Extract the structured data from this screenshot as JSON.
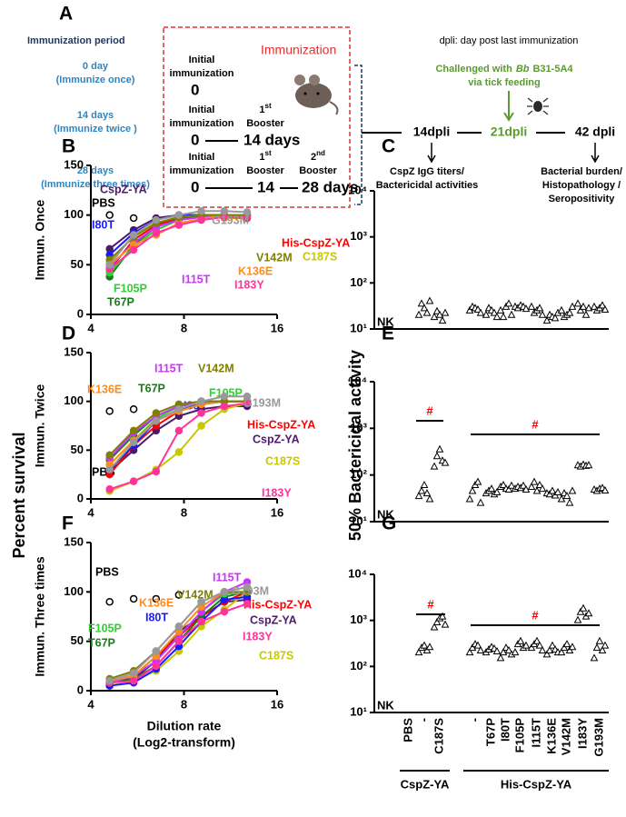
{
  "panel_a": {
    "letter": "A",
    "period_title": "Immunization period",
    "periods": [
      {
        "label": "0 day",
        "note": "(Immunize once)"
      },
      {
        "label": "14 days",
        "note": "(Immunize twice )"
      },
      {
        "label": "28 days",
        "note": "(Immunize three times)"
      }
    ],
    "box_title": "Immunization",
    "rows": [
      {
        "initial": [
          "Initial",
          "immunization"
        ],
        "times": [
          "0"
        ]
      },
      {
        "initial": [
          "Initial",
          "immunization"
        ],
        "boosters": [
          {
            "num": "1",
            "sup": "st",
            "label": "Booster"
          }
        ],
        "times": [
          "0",
          "14 days"
        ]
      },
      {
        "initial": [
          "Initial",
          "immunization"
        ],
        "boosters": [
          {
            "num": "1",
            "sup": "st",
            "label": "Booster"
          },
          {
            "num": "2",
            "sup": "nd",
            "label": "Booster"
          }
        ],
        "times": [
          "0",
          "14",
          "28 days"
        ]
      }
    ],
    "dpli_note": "dpli: day post last immunization",
    "challenge": {
      "pre": "Challenged with",
      "italic": "Bb",
      "post": "B31-5A4",
      "line2": "via tick feeding"
    },
    "timeline": [
      "14dpli",
      "21dpli",
      "42 dpli"
    ],
    "readouts_14": [
      "CspZ IgG titers/",
      "Bactericidal activities"
    ],
    "readouts_42": [
      "Bacterial burden/",
      "Histopathology /",
      "Seropositivity"
    ]
  },
  "figure": {
    "left_y": "Percent survival",
    "right_y": "50% Bactericidal activity"
  },
  "chart_data": [
    {
      "type": "line",
      "panel": "B",
      "ylabel": "Immun. Once",
      "xscale": "log2",
      "xlim": [
        4,
        16
      ],
      "xticks": [
        4,
        8,
        16
      ],
      "ylim": [
        0,
        150
      ],
      "yticks": [
        0,
        50,
        100,
        150
      ],
      "x": [
        4.6,
        5.5,
        6.5,
        7.7,
        9.1,
        10.8,
        12.8
      ],
      "series": [
        {
          "name": "PBS",
          "color": "#000000",
          "marker": "open",
          "line": false,
          "values": [
            100,
            97,
            null,
            null,
            null,
            null,
            null
          ]
        },
        {
          "name": "CspZ-YA",
          "color": "#4b1a6b",
          "values": [
            66,
            85,
            97,
            100,
            100,
            100,
            100
          ]
        },
        {
          "name": "C187S",
          "color": "#c8c800",
          "values": [
            52,
            80,
            92,
            98,
            100,
            97,
            97
          ]
        },
        {
          "name": "His-CspZ-YA",
          "color": "#ff0000",
          "values": [
            45,
            75,
            90,
            97,
            98,
            98,
            97
          ]
        },
        {
          "name": "T67P",
          "color": "#1a7a1a",
          "values": [
            38,
            70,
            88,
            96,
            100,
            100,
            100
          ]
        },
        {
          "name": "I80T",
          "color": "#1a1aff",
          "values": [
            60,
            82,
            95,
            100,
            100,
            100,
            100
          ]
        },
        {
          "name": "F105P",
          "color": "#33cc33",
          "values": [
            42,
            68,
            85,
            95,
            98,
            100,
            100
          ]
        },
        {
          "name": "I115T",
          "color": "#cc33ff",
          "values": [
            48,
            72,
            88,
            95,
            98,
            100,
            100
          ]
        },
        {
          "name": "K136E",
          "color": "#ff8c1a",
          "values": [
            50,
            70,
            80,
            92,
            96,
            100,
            100
          ]
        },
        {
          "name": "V142M",
          "color": "#808000",
          "values": [
            55,
            78,
            92,
            98,
            100,
            100,
            100
          ]
        },
        {
          "name": "I183Y",
          "color": "#ff3399",
          "values": [
            46,
            65,
            82,
            90,
            95,
            98,
            98
          ]
        },
        {
          "name": "G193M",
          "color": "#999999",
          "values": [
            50,
            80,
            95,
            100,
            104,
            104,
            103
          ]
        }
      ]
    },
    {
      "type": "dot",
      "panel": "C",
      "yscale": "log",
      "ylim": [
        10,
        10000
      ],
      "yticks": [
        {
          "value": 10,
          "label": "10¹"
        },
        {
          "value": 100,
          "label": "10²"
        },
        {
          "value": 1000,
          "label": "10³"
        },
        {
          "value": 10000,
          "label": "10⁴"
        }
      ],
      "values": [
        null,
        [
          20,
          35,
          28,
          22,
          40
        ],
        [
          18,
          24,
          20,
          15,
          22
        ],
        [
          25,
          30,
          28,
          26,
          22
        ],
        [
          20,
          28,
          25,
          22,
          18
        ],
        [
          25,
          18,
          30,
          35,
          20
        ],
        [
          30,
          28,
          32,
          30,
          27
        ],
        [
          30,
          22,
          25,
          28,
          20
        ],
        [
          15,
          20,
          18,
          17,
          22
        ],
        [
          25,
          18,
          20,
          22,
          30
        ],
        [
          35,
          25,
          30,
          20,
          28
        ],
        [
          30,
          25,
          28,
          32,
          26
        ]
      ],
      "annotations": [
        "NK"
      ]
    },
    {
      "type": "line",
      "panel": "D",
      "ylabel": "Immun. Twice",
      "xscale": "log2",
      "xlim": [
        4,
        16
      ],
      "xticks": [
        4,
        8,
        16
      ],
      "ylim": [
        0,
        150
      ],
      "yticks": [
        0,
        50,
        100,
        150
      ],
      "x": [
        4.6,
        5.5,
        6.5,
        7.7,
        9.1,
        10.8,
        12.8
      ],
      "series": [
        {
          "name": "PBS",
          "color": "#000000",
          "marker": "open",
          "line": false,
          "values": [
            90,
            92,
            null,
            null,
            null,
            null,
            null
          ]
        },
        {
          "name": "CspZ-YA",
          "color": "#4b1a6b",
          "values": [
            28,
            50,
            70,
            85,
            92,
            95,
            95
          ]
        },
        {
          "name": "C187S",
          "color": "#c8c800",
          "values": [
            8,
            18,
            30,
            48,
            75,
            92,
            98
          ]
        },
        {
          "name": "His-CspZ-YA",
          "color": "#ff0000",
          "values": [
            25,
            55,
            75,
            90,
            97,
            100,
            100
          ]
        },
        {
          "name": "T67P",
          "color": "#1a7a1a",
          "values": [
            40,
            65,
            85,
            95,
            100,
            100,
            100
          ]
        },
        {
          "name": "I80T",
          "color": "#1a1aff",
          "values": [
            30,
            55,
            80,
            92,
            97,
            100,
            100
          ]
        },
        {
          "name": "F105P",
          "color": "#33cc33",
          "values": [
            35,
            60,
            82,
            95,
            100,
            100,
            100
          ]
        },
        {
          "name": "I115T",
          "color": "#cc33ff",
          "values": [
            42,
            68,
            85,
            95,
            100,
            100,
            100
          ]
        },
        {
          "name": "K136E",
          "color": "#ff8c1a",
          "values": [
            35,
            60,
            80,
            90,
            97,
            100,
            100
          ]
        },
        {
          "name": "V142M",
          "color": "#808000",
          "values": [
            45,
            70,
            88,
            97,
            100,
            100,
            100
          ]
        },
        {
          "name": "I183Y",
          "color": "#ff3399",
          "values": [
            10,
            18,
            28,
            70,
            88,
            95,
            98
          ]
        },
        {
          "name": "G193M",
          "color": "#999999",
          "values": [
            30,
            58,
            80,
            92,
            100,
            105,
            105
          ]
        }
      ]
    },
    {
      "type": "dot",
      "panel": "E",
      "yscale": "log",
      "ylim": [
        10,
        10000
      ],
      "yticks": [
        {
          "value": 10,
          "label": "10¹"
        },
        {
          "value": 100,
          "label": "10²"
        },
        {
          "value": 1000,
          "label": "10³"
        },
        {
          "value": 10000,
          "label": "10⁴"
        }
      ],
      "values": [
        null,
        [
          35,
          45,
          60,
          40,
          30
        ],
        [
          150,
          250,
          350,
          200,
          180
        ],
        [
          30,
          45,
          60,
          70,
          25
        ],
        [
          40,
          45,
          50,
          38,
          42
        ],
        [
          55,
          60,
          50,
          48,
          58
        ],
        [
          50,
          55,
          52,
          58,
          48
        ],
        [
          55,
          70,
          45,
          60,
          50
        ],
        [
          40,
          38,
          45,
          36,
          42
        ],
        [
          30,
          40,
          35,
          25,
          45
        ],
        [
          160,
          150,
          165,
          155,
          160
        ],
        [
          48,
          45,
          50,
          52,
          46
        ]
      ],
      "annotations": [
        "NK",
        "#",
        "#"
      ]
    },
    {
      "type": "line",
      "panel": "F",
      "ylabel": "Immun. Three times",
      "xlabel": [
        "Dilution rate",
        "(Log2-transform)"
      ],
      "xscale": "log2",
      "xlim": [
        4,
        16
      ],
      "xticks": [
        4,
        8,
        16
      ],
      "ylim": [
        0,
        150
      ],
      "yticks": [
        0,
        50,
        100,
        150
      ],
      "x": [
        4.6,
        5.5,
        6.5,
        7.7,
        9.1,
        10.8,
        12.8
      ],
      "series": [
        {
          "name": "PBS",
          "color": "#000000",
          "marker": "open",
          "line": false,
          "values": [
            90,
            93,
            93,
            97,
            null,
            null,
            null
          ]
        },
        {
          "name": "CspZ-YA",
          "color": "#4b1a6b",
          "values": [
            8,
            12,
            30,
            60,
            75,
            90,
            92
          ]
        },
        {
          "name": "C187S",
          "color": "#c8c800",
          "values": [
            5,
            10,
            20,
            40,
            65,
            82,
            100
          ]
        },
        {
          "name": "His-CspZ-YA",
          "color": "#ff0000",
          "values": [
            10,
            15,
            35,
            55,
            75,
            90,
            100
          ]
        },
        {
          "name": "T67P",
          "color": "#1a7a1a",
          "values": [
            10,
            12,
            25,
            50,
            75,
            95,
            100
          ]
        },
        {
          "name": "I80T",
          "color": "#1a1aff",
          "values": [
            5,
            8,
            22,
            45,
            70,
            92,
            95
          ]
        },
        {
          "name": "F105P",
          "color": "#33cc33",
          "values": [
            10,
            15,
            30,
            55,
            80,
            98,
            100
          ]
        },
        {
          "name": "I115T",
          "color": "#cc33ff",
          "values": [
            8,
            15,
            30,
            55,
            80,
            100,
            110
          ]
        },
        {
          "name": "K136E",
          "color": "#ff8c1a",
          "values": [
            10,
            15,
            35,
            60,
            85,
            100,
            100
          ]
        },
        {
          "name": "V142M",
          "color": "#808000",
          "values": [
            12,
            20,
            40,
            65,
            90,
            100,
            100
          ]
        },
        {
          "name": "I183Y",
          "color": "#ff3399",
          "values": [
            8,
            10,
            25,
            50,
            70,
            80,
            88
          ]
        },
        {
          "name": "G193M",
          "color": "#999999",
          "values": [
            10,
            18,
            40,
            65,
            90,
            100,
            105
          ]
        }
      ]
    },
    {
      "type": "dot",
      "panel": "G",
      "yscale": "log",
      "ylim": [
        10,
        10000
      ],
      "yticks": [
        {
          "value": 10,
          "label": "10¹"
        },
        {
          "value": 100,
          "label": "10²"
        },
        {
          "value": 1000,
          "label": "10³"
        },
        {
          "value": 10000,
          "label": "10⁴"
        }
      ],
      "categories": [
        "PBS",
        "-",
        "C187S",
        "-",
        "T67P",
        "I80T",
        "F105P",
        "I115T",
        "K136E",
        "V142M",
        "I183Y",
        "G193M"
      ],
      "groups": [
        "CspZ-YA",
        "His-CspZ-YA"
      ],
      "values": [
        null,
        [
          200,
          250,
          280,
          220,
          260
        ],
        [
          700,
          900,
          1100,
          1200,
          800
        ],
        [
          200,
          250,
          300,
          280,
          220
        ],
        [
          200,
          230,
          260,
          240,
          210
        ],
        [
          150,
          200,
          250,
          220,
          180
        ],
        [
          200,
          300,
          350,
          250,
          280
        ],
        [
          250,
          300,
          350,
          280,
          220
        ],
        [
          180,
          220,
          280,
          230,
          200
        ],
        [
          200,
          250,
          300,
          220,
          260
        ],
        [
          1000,
          1500,
          1800,
          1200,
          1400
        ],
        [
          150,
          250,
          350,
          220,
          280
        ]
      ],
      "annotations": [
        "NK",
        "#",
        "#"
      ]
    }
  ]
}
